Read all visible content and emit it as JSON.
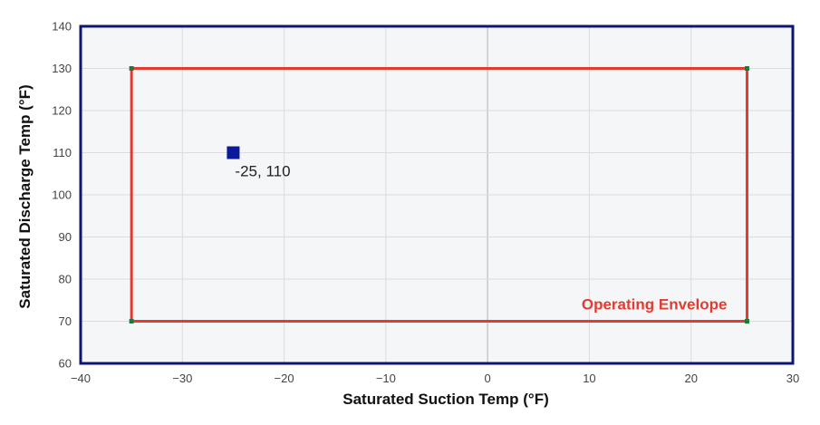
{
  "chart_data": {
    "type": "scatter",
    "xlabel": "Saturated Suction Temp (°F)",
    "ylabel": "Saturated Discharge Temp (°F)",
    "xlim": [
      -40,
      30
    ],
    "ylim": [
      60,
      140
    ],
    "x_ticks": [
      -40,
      -30,
      -20,
      -10,
      0,
      10,
      20,
      30
    ],
    "y_ticks": [
      60,
      70,
      80,
      90,
      100,
      110,
      120,
      130,
      140
    ],
    "grid": true,
    "envelope": {
      "label": "Operating Envelope",
      "x_min": -35,
      "x_max": 25.5,
      "y_min": 70,
      "y_max": 130,
      "color": "#e03c31",
      "corner_color": "#1e7a3c"
    },
    "points": [
      {
        "x": -25,
        "y": 110,
        "label": "-25, 110",
        "color": "#0a1a9a"
      }
    ]
  },
  "colors": {
    "frame": "#0d1675",
    "plot_background": "#f5f6f7",
    "grid": "#dcdcdc",
    "zero_line": "#c8c8c8"
  }
}
